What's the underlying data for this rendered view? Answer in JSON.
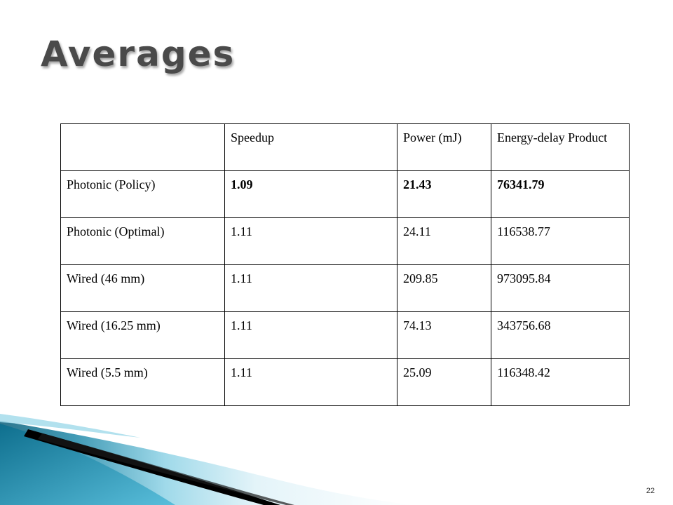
{
  "slide": {
    "title": "Averages",
    "page_number": "22"
  },
  "table": {
    "headers": [
      "",
      "Speedup",
      "Power (mJ)",
      "Energy-delay Product"
    ],
    "rows": [
      {
        "label": "Photonic (Policy)",
        "speedup": "1.09",
        "power": "21.43",
        "edp": "76341.79",
        "bold": true
      },
      {
        "label": "Photonic (Optimal)",
        "speedup": "1.11",
        "power": "24.11",
        "edp": "116538.77",
        "bold": false
      },
      {
        "label": "Wired (46 mm)",
        "speedup": "1.11",
        "power": "209.85",
        "edp": "973095.84",
        "bold": false
      },
      {
        "label": "Wired (16.25 mm)",
        "speedup": "1.11",
        "power": "74.13",
        "edp": "343756.68",
        "bold": false
      },
      {
        "label": "Wired (5.5 mm)",
        "speedup": "1.11",
        "power": "25.09",
        "edp": "116348.42",
        "bold": false
      }
    ]
  },
  "colors": {
    "title": "#4a4a4a",
    "wave_dark": "#0b5f7a",
    "wave_light": "#6cc7e0",
    "stripe": "#000000"
  }
}
